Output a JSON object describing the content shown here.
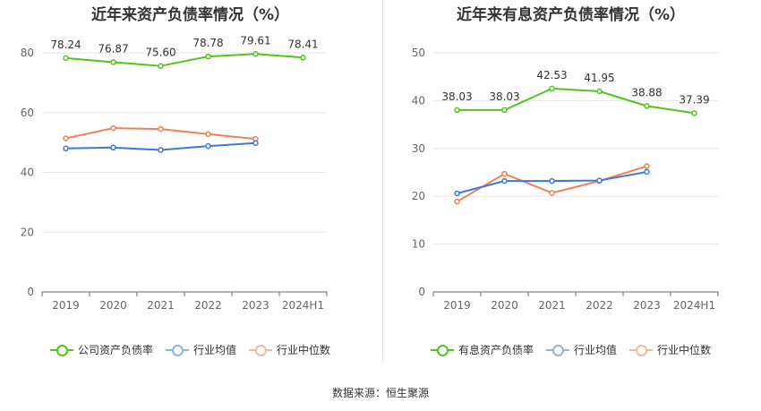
{
  "colors": {
    "primary_green": "#52c41a",
    "industry_avg_blue": "#3c78d8",
    "industry_median_orange": "#f08055",
    "legend_avg_blue": "#8fb4ea",
    "legend_median_orange": "#f4b89d",
    "grid": "#e6e6e6",
    "axis": "#666666"
  },
  "source_label": "数据来源：恒生聚源",
  "chart_data": [
    {
      "type": "line",
      "title": "近年来资产负债率情况（%）",
      "categories": [
        "2019",
        "2020",
        "2021",
        "2022",
        "2023",
        "2024H1"
      ],
      "ylim": [
        0,
        90
      ],
      "yticks": [
        0,
        20,
        40,
        60,
        80
      ],
      "grid": true,
      "legend_position": "bottom",
      "series": [
        {
          "name": "公司资产负债率",
          "color": "#52c41a",
          "labels": true,
          "values": [
            78.24,
            76.87,
            75.6,
            78.78,
            79.61,
            78.41
          ]
        },
        {
          "name": "行业均值",
          "color": "#3c78d8",
          "legend_color": "#8fb4ea",
          "labels": false,
          "values": [
            48.0,
            48.3,
            47.5,
            48.8,
            49.8,
            null
          ]
        },
        {
          "name": "行业中位数",
          "color": "#f08055",
          "legend_color": "#f4b89d",
          "labels": false,
          "values": [
            51.4,
            54.8,
            54.5,
            52.8,
            51.2,
            null
          ]
        }
      ]
    },
    {
      "type": "line",
      "title": "近年来有息资产负债率情况（%）",
      "categories": [
        "2019",
        "2020",
        "2021",
        "2022",
        "2023",
        "2024H1"
      ],
      "ylim": [
        0,
        50
      ],
      "yticks": [
        0,
        10,
        20,
        30,
        40,
        50
      ],
      "grid": true,
      "legend_position": "bottom",
      "series": [
        {
          "name": "有息资产负债率",
          "color": "#52c41a",
          "labels": true,
          "values": [
            38.03,
            38.03,
            42.53,
            41.95,
            38.88,
            37.39
          ]
        },
        {
          "name": "行业均值",
          "color": "#3c78d8",
          "legend_color": "#8fb4ea",
          "labels": false,
          "values": [
            20.6,
            23.2,
            23.2,
            23.3,
            25.1,
            null
          ]
        },
        {
          "name": "行业中位数",
          "color": "#f08055",
          "legend_color": "#f4b89d",
          "labels": false,
          "values": [
            18.9,
            24.7,
            20.7,
            23.2,
            26.3,
            null
          ]
        }
      ]
    }
  ]
}
